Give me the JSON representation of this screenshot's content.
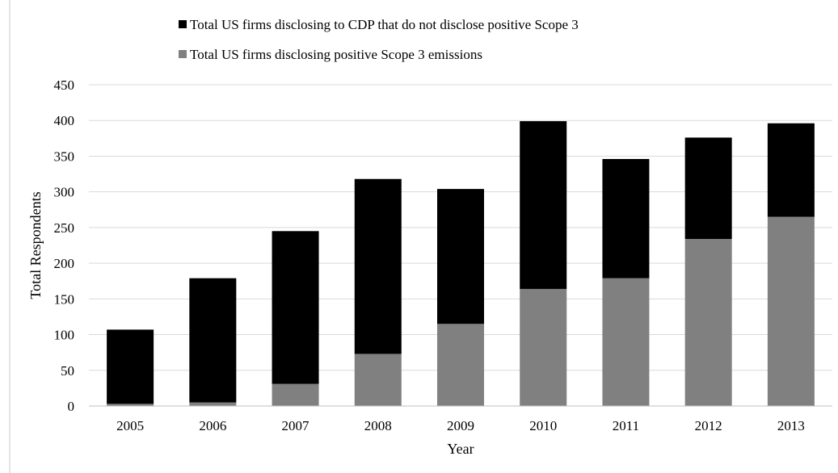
{
  "chart_data": {
    "type": "bar",
    "stacked": true,
    "title": "",
    "xlabel": "Year",
    "ylabel": "Total Respondents",
    "categories": [
      "2005",
      "2006",
      "2007",
      "2008",
      "2009",
      "2010",
      "2011",
      "2012",
      "2013"
    ],
    "series": [
      {
        "name": "Total US firms disclosing positive  Scope 3 emissions",
        "color": "#808080",
        "values": [
          3,
          5,
          31,
          73,
          115,
          164,
          179,
          234,
          265
        ]
      },
      {
        "name": "Total US firms disclosing to CDP that do not disclose positive  Scope 3",
        "color": "#000000",
        "values": [
          104,
          174,
          214,
          245,
          189,
          235,
          167,
          142,
          131
        ]
      }
    ],
    "ylim": [
      0,
      450
    ],
    "yticks": [
      0,
      50,
      100,
      150,
      200,
      250,
      300,
      350,
      400,
      450
    ],
    "grid": true,
    "legend_position": "top"
  }
}
